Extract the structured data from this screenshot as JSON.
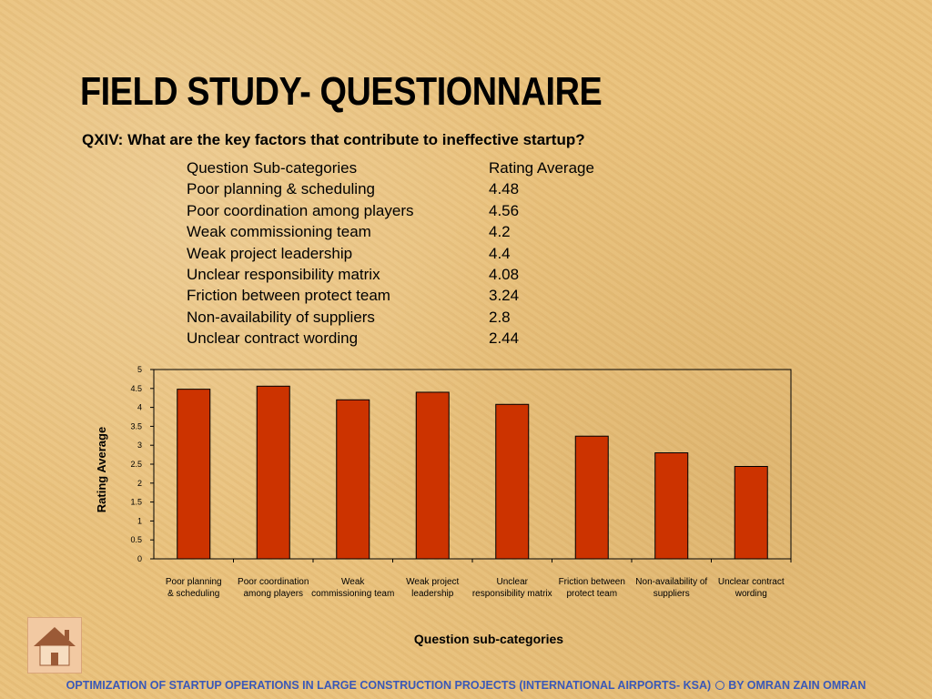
{
  "slide": {
    "title": "FIELD STUDY- QUESTIONNAIRE",
    "question": "QXIV: What are the key factors that contribute to ineffective startup?",
    "footer": "OPTIMIZATION OF STARTUP OPERATIONS IN LARGE CONSTRUCTION  PROJECTS (INTERNATIONAL AIRPORTS- KSA)",
    "footer_author": "BY OMRAN ZAIN OMRAN"
  },
  "table": {
    "header_category": "Question Sub-categories",
    "header_value": "Rating Average",
    "rows": [
      {
        "category": "Poor planning & scheduling",
        "value": "4.48"
      },
      {
        "category": "Poor coordination among players",
        "value": "4.56"
      },
      {
        "category": "Weak commissioning team",
        "value": "4.2"
      },
      {
        "category": "Weak project leadership",
        "value": "4.4"
      },
      {
        "category": "Unclear responsibility matrix",
        "value": "4.08"
      },
      {
        "category": "Friction between protect team",
        "value": "3.24"
      },
      {
        "category": "Non-availability of suppliers",
        "value": "2.8"
      },
      {
        "category": "Unclear contract wording",
        "value": "2.44"
      }
    ]
  },
  "chart_data": {
    "type": "bar",
    "categories": [
      [
        "Poor planning",
        "& scheduling"
      ],
      [
        "Poor coordination",
        "among players"
      ],
      [
        "Weak",
        "commissioning team"
      ],
      [
        "Weak project",
        "leadership"
      ],
      [
        "Unclear",
        "responsibility matrix"
      ],
      [
        "Friction between",
        "protect team"
      ],
      [
        "Non-availability of",
        "suppliers"
      ],
      [
        "Unclear contract",
        "wording"
      ]
    ],
    "values": [
      4.48,
      4.56,
      4.2,
      4.4,
      4.08,
      3.24,
      2.8,
      2.44
    ],
    "xlabel": "Question sub-categories",
    "ylabel": "Rating Average",
    "ylim": [
      0,
      5
    ],
    "yticks": [
      "0",
      "0.5",
      "1",
      "1.5",
      "2",
      "2.5",
      "3",
      "3.5",
      "4",
      "4.5",
      "5"
    ],
    "grid": false,
    "legend": "none",
    "bar_color": "#cc3300"
  },
  "icons": {
    "home": "home-icon"
  }
}
